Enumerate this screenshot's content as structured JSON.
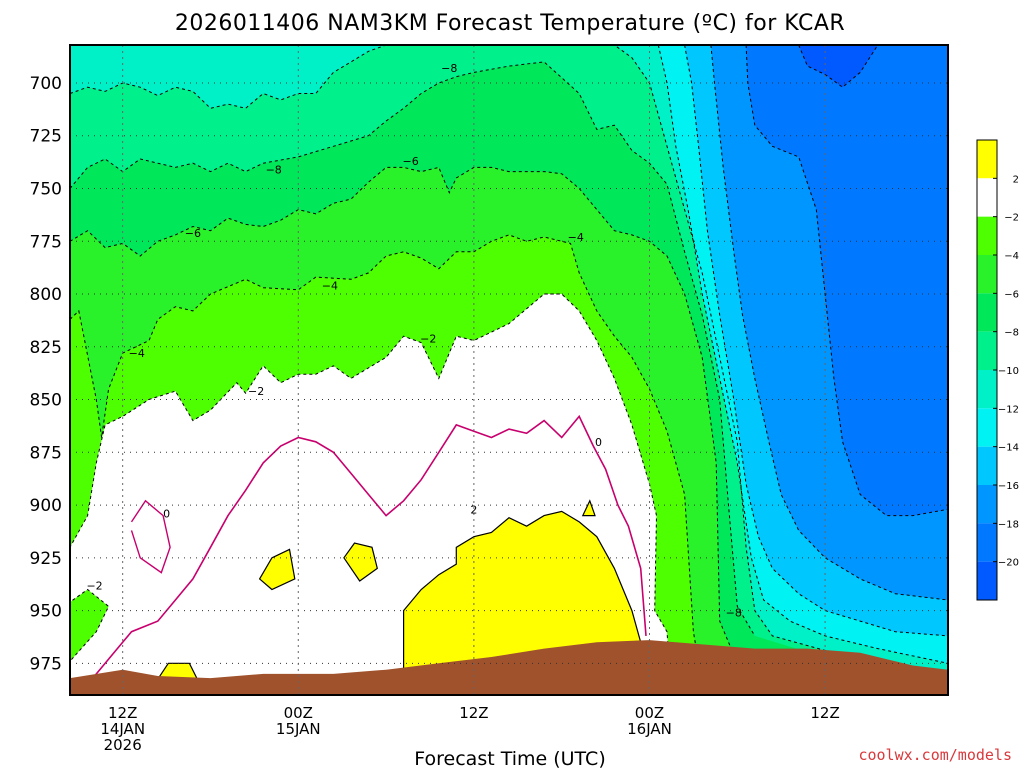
{
  "title": "2026011406 NAM3KM Forecast Temperature (ºC) for KCAR",
  "credit": "coolwx.com/models",
  "colors": {
    "fill": {
      "gt2": "#ffff00",
      "m2_2": "#ffffff",
      "m4_m2": "#4dff00",
      "m6_m4": "#2af22a",
      "m8_m6": "#00e85a",
      "m10_m8": "#00f08c",
      "m12_m10": "#00f0c8",
      "m14_m12": "#00f2f2",
      "m16_m14": "#00c8ff",
      "m18_m16": "#0096ff",
      "m20_m18": "#0078ff",
      "lt_m20": "#005aff"
    },
    "ground": "#a0522d",
    "zero_line": "#c8006e"
  },
  "chart_data": {
    "type": "heatmap",
    "title": "2026011406 NAM3KM Forecast Temperature (ºC) for KCAR",
    "xlabel": "Forecast Time (UTC)",
    "ylabel": "",
    "y_scale": "pressure (inverted)",
    "xlim_hours": [
      -3,
      47
    ],
    "ylim": [
      990,
      682
    ],
    "grid": true,
    "y_ticks": [
      "700",
      "725",
      "750",
      "775",
      "800",
      "825",
      "850",
      "875",
      "900",
      "925",
      "950",
      "975"
    ],
    "x_ticks": [
      {
        "hour": 0,
        "lines": [
          "12Z",
          "14JAN",
          "2026"
        ]
      },
      {
        "hour": 10,
        "lines": [
          "00Z",
          "15JAN"
        ]
      },
      {
        "hour": 20,
        "lines": [
          "12Z"
        ]
      },
      {
        "hour": 30,
        "lines": [
          "00Z",
          "16JAN"
        ]
      },
      {
        "hour": 40,
        "lines": [
          "12Z"
        ]
      }
    ],
    "colorbar": {
      "labels": [
        "2",
        "−2",
        "−4",
        "−6",
        "−8",
        "−10",
        "−12",
        "−14",
        "−16",
        "−18",
        "−20"
      ]
    },
    "contour_labels": [
      {
        "text": "−8",
        "hour": 18.6,
        "p": 693
      },
      {
        "text": "−8",
        "hour": 8.6,
        "p": 741
      },
      {
        "text": "−6",
        "hour": 16.4,
        "p": 737
      },
      {
        "text": "−6",
        "hour": 4.0,
        "p": 771
      },
      {
        "text": "−4",
        "hour": 11.8,
        "p": 796
      },
      {
        "text": "−4",
        "hour": 25.8,
        "p": 773
      },
      {
        "text": "−4",
        "hour": 0.8,
        "p": 828
      },
      {
        "text": "−2",
        "hour": 17.4,
        "p": 821
      },
      {
        "text": "−2",
        "hour": 7.6,
        "p": 846
      },
      {
        "text": "−2",
        "hour": -1.6,
        "p": 938
      },
      {
        "text": "0",
        "hour": 27.1,
        "p": 870
      },
      {
        "text": "0",
        "hour": 2.5,
        "p": 904
      },
      {
        "text": "2",
        "hour": 20.0,
        "p": 902
      },
      {
        "text": "−8",
        "hour": 34.8,
        "p": 951
      }
    ]
  }
}
